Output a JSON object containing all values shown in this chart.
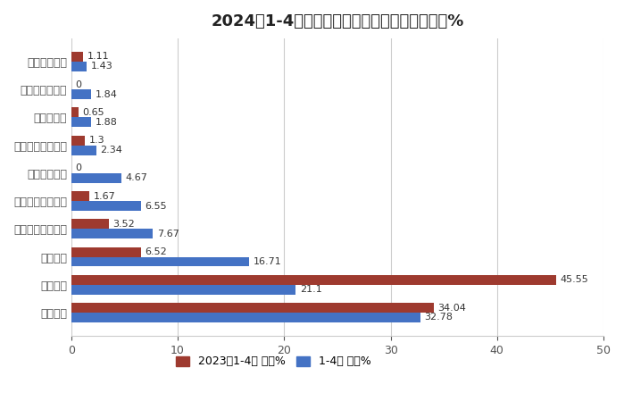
{
  "title": "2024年1-4月新能源攪拌車占比及去年同期占比%",
  "categories": [
    "徐工重卡",
    "三一汽車",
    "中聯重科",
    "遠程新能源商用車",
    "蕪湖中集瑞江汽車",
    "中國重汽集團",
    "洛陽中集凌宇汽車",
    "福田戴姆勒",
    "河南犀重新能源",
    "廣州穗景客車"
  ],
  "values_2023": [
    34.04,
    45.55,
    6.52,
    3.52,
    1.67,
    0,
    1.3,
    0.65,
    0,
    1.11
  ],
  "values_2024": [
    32.78,
    21.1,
    16.71,
    7.67,
    6.55,
    4.67,
    2.34,
    1.88,
    1.84,
    1.43
  ],
  "labels_2023": [
    "34.04",
    "45.55",
    "6.52",
    "3.52",
    "1.67",
    "0",
    "1.3",
    "0.65",
    "0",
    "1.11"
  ],
  "labels_2024": [
    "32.78",
    "21.1",
    "16.71",
    "7.67",
    "6.55",
    "4.67",
    "2.34",
    "1.88",
    "1.84",
    "1.43"
  ],
  "color_2023": "#9e3a2f",
  "color_2024": "#4472c4",
  "bar_height": 0.35,
  "xlim": [
    0,
    50
  ],
  "xticks": [
    0,
    10,
    20,
    30,
    40,
    50
  ],
  "legend_2023": "2023年1-4月 占比%",
  "legend_2024": "1-4月 占比%",
  "bg_color": "#ffffff",
  "fontsize_title": 13,
  "fontsize_legend": 9,
  "fontsize_tick": 9,
  "fontsize_bar_label": 8
}
